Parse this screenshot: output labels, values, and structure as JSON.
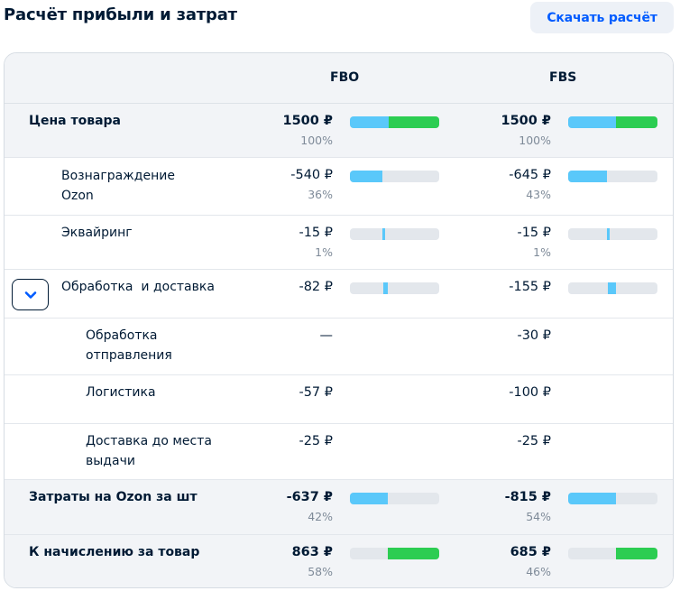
{
  "header": {
    "title": "Расчёт прибыли и затрат",
    "download_label": "Скачать расчёт"
  },
  "columns": {
    "fbo": "FBO",
    "fbs": "FBS"
  },
  "rows": [
    {
      "label": "Цена товара",
      "fbo": {
        "value": "1500 ₽",
        "pct": "100%",
        "bar": {
          "blue": [
            0,
            0.43
          ],
          "green": [
            0.43,
            1.0
          ]
        }
      },
      "fbs": {
        "value": "1500 ₽",
        "pct": "100%",
        "bar": {
          "blue": [
            0,
            0.54
          ],
          "green": [
            0.54,
            1.0
          ]
        }
      }
    },
    {
      "label": "Вознаграждение Ozon",
      "fbo": {
        "value": "-540 ₽",
        "pct": "36%",
        "bar": {
          "blue": [
            0,
            0.36
          ]
        }
      },
      "fbs": {
        "value": "-645 ₽",
        "pct": "43%",
        "bar": {
          "blue": [
            0,
            0.43
          ]
        }
      }
    },
    {
      "label": "Эквайринг",
      "fbo": {
        "value": "-15 ₽",
        "pct": "1%",
        "bar": {
          "blue": [
            0.36,
            0.37
          ]
        }
      },
      "fbs": {
        "value": "-15 ₽",
        "pct": "1%",
        "bar": {
          "blue": [
            0.43,
            0.44
          ]
        }
      }
    },
    {
      "label": "Обработка  и доставка",
      "fbo": {
        "value": "-82 ₽",
        "bar": {
          "blue": [
            0.37,
            0.42
          ]
        }
      },
      "fbs": {
        "value": "-155 ₽",
        "bar": {
          "blue": [
            0.44,
            0.54
          ]
        }
      }
    },
    {
      "label": "Обработка отправления",
      "fbo": {
        "value": "—"
      },
      "fbs": {
        "value": "-30 ₽"
      }
    },
    {
      "label": "Логистика",
      "fbo": {
        "value": "-57 ₽"
      },
      "fbs": {
        "value": "-100 ₽"
      }
    },
    {
      "label": "Доставка до места выдачи",
      "fbo": {
        "value": "-25 ₽"
      },
      "fbs": {
        "value": "-25 ₽"
      }
    },
    {
      "label": "Затраты на Ozon за шт",
      "fbo": {
        "value": "-637 ₽",
        "pct": "42%",
        "bar": {
          "blue": [
            0,
            0.42
          ]
        }
      },
      "fbs": {
        "value": "-815 ₽",
        "pct": "54%",
        "bar": {
          "blue": [
            0,
            0.54
          ]
        }
      }
    },
    {
      "label": "К начислению за товар",
      "fbo": {
        "value": "863 ₽",
        "pct": "58%",
        "bar": {
          "green": [
            0.42,
            1.0
          ]
        }
      },
      "fbs": {
        "value": "685 ₽",
        "pct": "46%",
        "bar": {
          "green": [
            0.54,
            1.0
          ]
        }
      }
    }
  ],
  "colors": {
    "blue_bar": "#5ac8fa",
    "green_bar": "#2ccd52",
    "track": "#e3e7ec",
    "accent": "#005bff"
  },
  "icons": {
    "toggle": "chevron-down-icon"
  }
}
